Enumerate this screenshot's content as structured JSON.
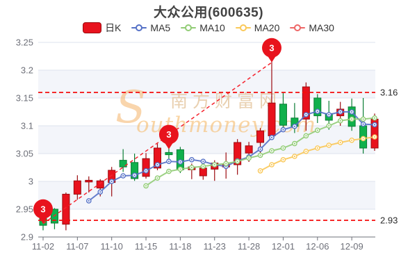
{
  "title": "大众公用(600635)",
  "legend": {
    "items": [
      {
        "label": "日K",
        "type": "candle",
        "color": "#e8121d",
        "border": "#9c0b10"
      },
      {
        "label": "MA5",
        "type": "line",
        "color": "#5470c6"
      },
      {
        "label": "MA10",
        "type": "line",
        "color": "#91cc75"
      },
      {
        "label": "MA20",
        "type": "line",
        "color": "#fac858"
      },
      {
        "label": "MA30",
        "type": "line",
        "color": "#ee6666"
      }
    ]
  },
  "watermark": {
    "s": "S",
    "cn": "南方财富网",
    "en": "outhmoney.com"
  },
  "colors": {
    "up_fill": "#e8121d",
    "up_border": "#9c0b10",
    "down_fill": "#10b04c",
    "down_border": "#0b7e35",
    "grid": "#dde3ee",
    "band": "#f3f5fa",
    "axis": "#6e7079",
    "ref_line": "#f50d0d",
    "trend_line": "#f5222d",
    "marker": "#e8131d"
  },
  "chart_data": {
    "type": "candlestick+line",
    "title": "大众公用(600635)",
    "ylim": [
      2.9,
      3.25
    ],
    "grid": true,
    "legend_position": "top",
    "y_ticks": [
      [
        2.9,
        "2.9"
      ],
      [
        2.95,
        "2.95"
      ],
      [
        3.0,
        "3"
      ],
      [
        3.05,
        "3.05"
      ],
      [
        3.1,
        "3.1"
      ],
      [
        3.15,
        "3.15"
      ],
      [
        3.2,
        "3.2"
      ],
      [
        3.25,
        "3.25"
      ]
    ],
    "x_tick_labels": [
      "11-02",
      "11-07",
      "11-10",
      "11-15",
      "11-18",
      "11-23",
      "11-28",
      "12-01",
      "12-06",
      "12-09"
    ],
    "candle_columns": [
      "date",
      "open",
      "close",
      "low",
      "high"
    ],
    "candles": [
      [
        "11-02",
        2.94,
        2.921,
        2.912,
        2.945
      ],
      [
        "11-03",
        2.95,
        2.925,
        2.914,
        2.952
      ],
      [
        "11-04",
        2.923,
        2.977,
        2.912,
        2.98
      ],
      [
        "11-07",
        2.977,
        3.001,
        2.967,
        3.011
      ],
      [
        "11-08",
        2.999,
        3.002,
        2.98,
        3.009
      ],
      [
        "11-09",
        2.988,
        3.001,
        2.973,
        3.004
      ],
      [
        "11-10",
        2.998,
        3.02,
        2.973,
        3.026
      ],
      [
        "11-11",
        3.038,
        3.026,
        3.017,
        3.058
      ],
      [
        "11-14",
        3.034,
        3.005,
        3.001,
        3.05
      ],
      [
        "11-15",
        3.009,
        3.041,
        3.005,
        3.051
      ],
      [
        "11-16",
        3.024,
        3.06,
        3.02,
        3.068
      ],
      [
        "11-17",
        3.052,
        3.048,
        3.04,
        3.06
      ],
      [
        "11-18",
        3.057,
        3.021,
        3.015,
        3.062
      ],
      [
        "11-21",
        3.021,
        3.026,
        3.004,
        3.032
      ],
      [
        "11-22",
        3.01,
        3.024,
        3.003,
        3.034
      ],
      [
        "11-23",
        3.022,
        3.033,
        3.001,
        3.038
      ],
      [
        "11-24",
        3.026,
        3.031,
        3.005,
        3.052
      ],
      [
        "11-25",
        3.03,
        3.07,
        3.012,
        3.076
      ],
      [
        "11-28",
        3.051,
        3.064,
        3.035,
        3.071
      ],
      [
        "11-29",
        3.07,
        3.091,
        3.045,
        3.096
      ],
      [
        "11-30",
        3.082,
        3.141,
        3.078,
        3.216
      ],
      [
        "12-01",
        3.139,
        3.101,
        3.095,
        3.16
      ],
      [
        "12-02",
        3.114,
        3.099,
        3.087,
        3.141
      ],
      [
        "12-05",
        3.112,
        3.17,
        3.091,
        3.178
      ],
      [
        "12-06",
        3.15,
        3.118,
        3.105,
        3.157
      ],
      [
        "12-07",
        3.122,
        3.11,
        3.093,
        3.145
      ],
      [
        "12-08",
        3.118,
        3.13,
        3.1,
        3.143
      ],
      [
        "12-09",
        3.134,
        3.099,
        3.091,
        3.149
      ],
      [
        "12-12",
        3.1,
        3.06,
        3.05,
        3.15
      ],
      [
        "12-13",
        3.06,
        3.112,
        3.055,
        3.122
      ]
    ],
    "series": [
      {
        "name": "MA5",
        "color": "#5470c6",
        "values": [
          null,
          null,
          null,
          null,
          2.965,
          2.981,
          3.0,
          3.01,
          3.011,
          3.019,
          3.03,
          3.036,
          3.035,
          3.039,
          3.036,
          3.03,
          3.027,
          3.037,
          3.044,
          3.058,
          3.079,
          3.093,
          3.099,
          3.12,
          3.126,
          3.12,
          3.125,
          3.125,
          3.103,
          3.102
        ]
      },
      {
        "name": "MA10",
        "color": "#91cc75",
        "values": [
          null,
          null,
          null,
          null,
          null,
          null,
          null,
          null,
          null,
          2.992,
          3.006,
          3.018,
          3.022,
          3.025,
          3.027,
          3.03,
          3.032,
          3.036,
          3.042,
          3.047,
          3.055,
          3.06,
          3.068,
          3.082,
          3.092,
          3.1,
          3.109,
          3.112,
          3.112,
          3.114
        ]
      },
      {
        "name": "MA20",
        "color": "#fac858",
        "values": [
          null,
          null,
          null,
          null,
          null,
          null,
          null,
          null,
          null,
          null,
          null,
          null,
          null,
          null,
          null,
          null,
          null,
          null,
          null,
          3.019,
          3.03,
          3.039,
          3.045,
          3.054,
          3.06,
          3.065,
          3.07,
          3.074,
          3.077,
          3.08
        ]
      },
      {
        "name": "MA30",
        "color": "#ee6666",
        "values": [
          null,
          null,
          null,
          null,
          null,
          null,
          null,
          null,
          null,
          null,
          null,
          null,
          null,
          null,
          null,
          null,
          null,
          null,
          null,
          null,
          null,
          null,
          null,
          null,
          null,
          null,
          null,
          null,
          null,
          null
        ]
      }
    ],
    "reference_lines": [
      {
        "value": 3.16,
        "label": "3.16"
      },
      {
        "value": 2.93,
        "label": "2.93"
      }
    ],
    "markers": [
      {
        "label": "3",
        "date": "11-02",
        "value": 2.924
      },
      {
        "label": "3",
        "date": "11-17",
        "value": 3.058
      },
      {
        "label": "3",
        "date": "11-30",
        "value": 3.214
      }
    ],
    "trend_line": {
      "from": {
        "date": "11-02",
        "value": 2.924
      },
      "to": {
        "date": "11-30",
        "value": 3.214
      }
    }
  }
}
